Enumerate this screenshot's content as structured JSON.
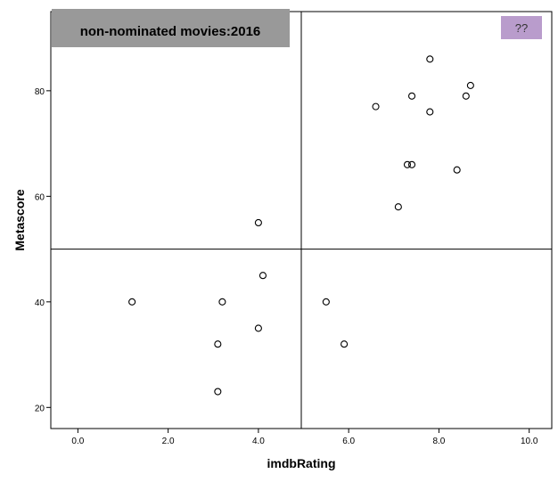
{
  "chart_data": {
    "type": "scatter",
    "title": "non-nominated movies:2016",
    "xlabel": "imdbRating",
    "ylabel": "Metascore",
    "xlim": [
      -0.6,
      10.5
    ],
    "ylim": [
      16,
      95
    ],
    "xticks": [
      0,
      2,
      4,
      6,
      8,
      10
    ],
    "xtick_labels": [
      "0.0",
      "2.0",
      "4.0",
      "6.0",
      "8.0",
      "10.0"
    ],
    "yticks": [
      20,
      40,
      60,
      80
    ],
    "ytick_labels": [
      "20",
      "40",
      "60",
      "80"
    ],
    "reference_lines": {
      "x": 4.95,
      "y": 50
    },
    "legend_label": "??",
    "grid": false,
    "colors": {
      "title_box": "#999999",
      "legend_box": "#b99ccc",
      "marker_stroke": "#000000"
    },
    "points": [
      {
        "x": 7.8,
        "y": 86
      },
      {
        "x": 8.7,
        "y": 81
      },
      {
        "x": 7.4,
        "y": 79
      },
      {
        "x": 8.6,
        "y": 79
      },
      {
        "x": 6.6,
        "y": 77
      },
      {
        "x": 7.8,
        "y": 76
      },
      {
        "x": 7.3,
        "y": 66
      },
      {
        "x": 7.4,
        "y": 66
      },
      {
        "x": 8.4,
        "y": 65
      },
      {
        "x": 7.1,
        "y": 58
      },
      {
        "x": 4.0,
        "y": 55
      },
      {
        "x": 4.1,
        "y": 45
      },
      {
        "x": 1.2,
        "y": 40
      },
      {
        "x": 3.2,
        "y": 40
      },
      {
        "x": 5.5,
        "y": 40
      },
      {
        "x": 4.0,
        "y": 35
      },
      {
        "x": 3.1,
        "y": 32
      },
      {
        "x": 5.9,
        "y": 32
      },
      {
        "x": 3.1,
        "y": 23
      }
    ]
  }
}
